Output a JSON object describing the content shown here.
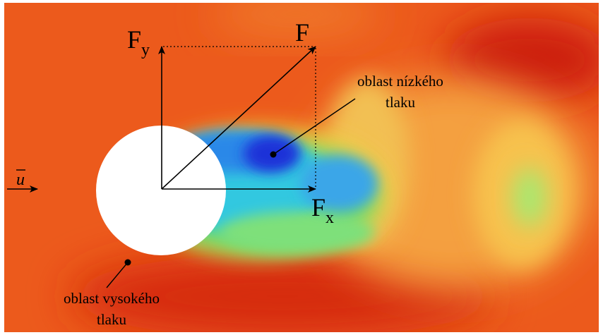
{
  "labels": {
    "F": "F",
    "Fy_main": "F",
    "Fy_sub": "y",
    "Fx_main": "F",
    "Fx_sub": "x",
    "u_symbol": "u",
    "low_pressure_line1": "oblast nízkého",
    "low_pressure_line2": "tlaku",
    "high_pressure_line1": "oblast vysokého",
    "high_pressure_line2": "tlaku"
  },
  "colors": {
    "background_orange": "#ec5a1c",
    "high_pressure_red": "#d62a10",
    "low_pressure_blue": "#1a30d8",
    "wake_cyan": "#2fc0e8",
    "wake_green": "#7ee060",
    "wake_yellow": "#f6b548",
    "cylinder_fill": "#ffffff",
    "arrow_color": "#000000"
  }
}
